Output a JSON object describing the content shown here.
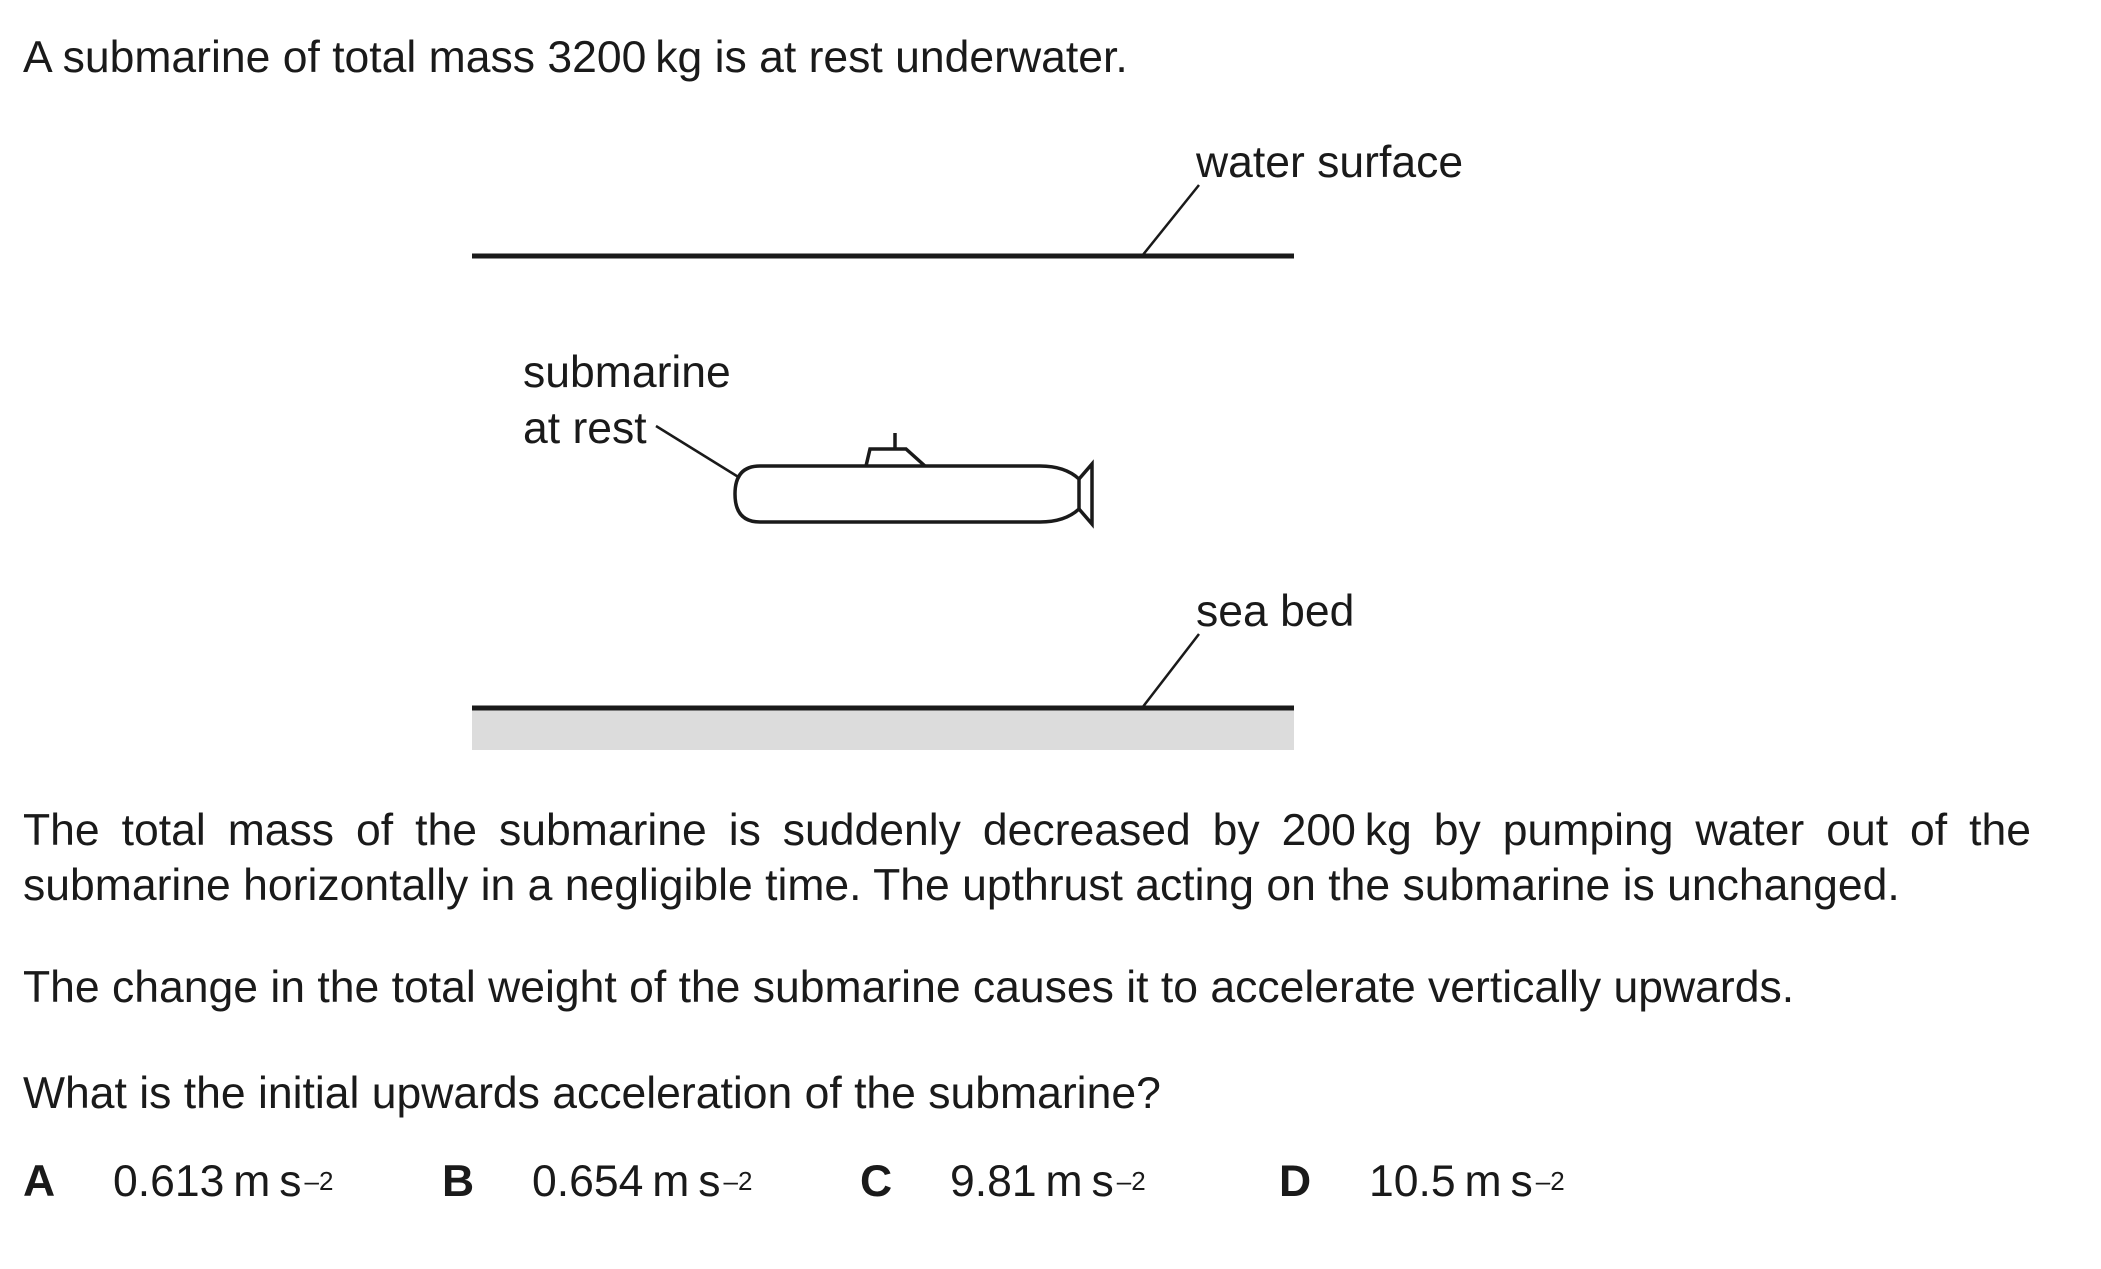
{
  "question": {
    "intro": "A submarine of total mass 3200 kg is at rest underwater.",
    "para1_line1": "The total mass of the submarine is suddenly decreased by 200 kg by pumping water out of the",
    "para1_line2": "submarine horizontally in a negligible time. The upthrust acting on the submarine is unchanged.",
    "para2": "The change in the total weight of the submarine causes it to accelerate vertically upwards.",
    "prompt": "What is the initial upwards acceleration of the submarine?"
  },
  "diagram": {
    "water_surface_label": "water surface",
    "submarine_label_line1": "submarine",
    "submarine_label_line2": "at rest",
    "sea_bed_label": "sea bed",
    "sea_bed_fill": "#dcdcdc",
    "line_color": "#1a1a1a"
  },
  "options": [
    {
      "letter": "A",
      "value": "0.613 m s",
      "exponent": "–2"
    },
    {
      "letter": "B",
      "value": "0.654 m s",
      "exponent": "–2"
    },
    {
      "letter": "C",
      "value": "9.81 m s",
      "exponent": "–2"
    },
    {
      "letter": "D",
      "value": "10.5 m s",
      "exponent": "–2"
    }
  ]
}
